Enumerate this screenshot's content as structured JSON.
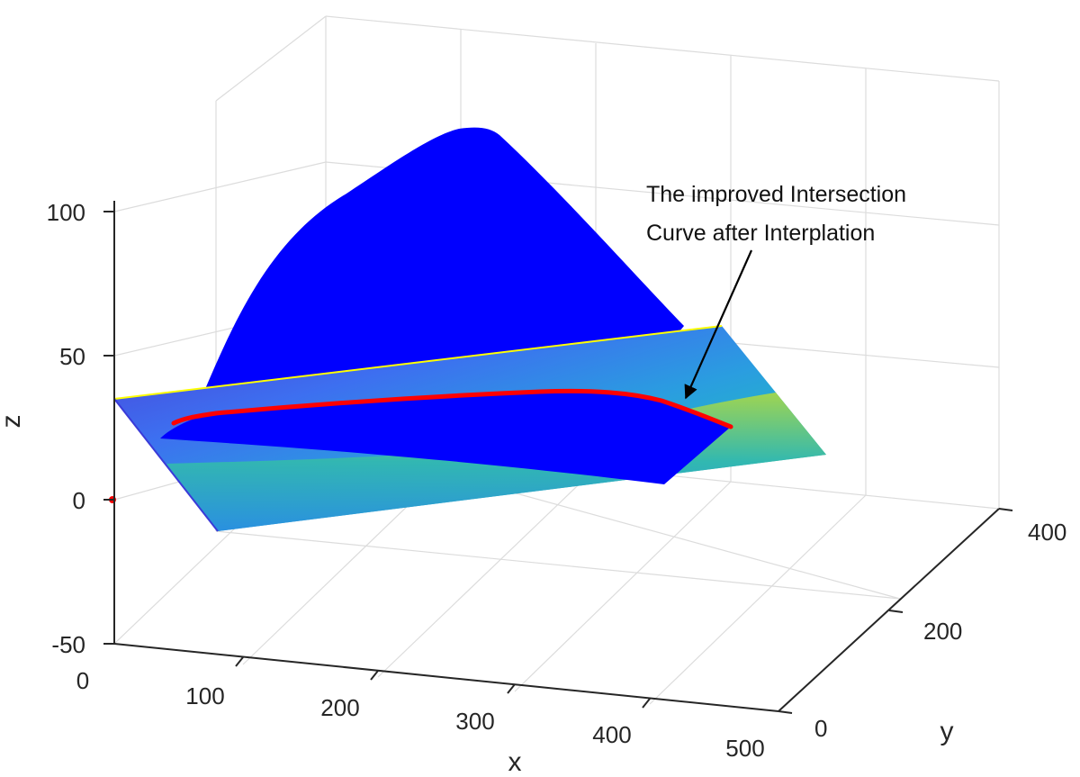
{
  "chart_data": {
    "type": "surface3d",
    "xlabel": "x",
    "ylabel": "y",
    "zlabel": "z",
    "xlim": [
      0,
      500
    ],
    "ylim": [
      0,
      400
    ],
    "zlim": [
      -50,
      100
    ],
    "x_ticks": [
      "0",
      "100",
      "200",
      "300",
      "400",
      "500"
    ],
    "y_ticks": [
      "0",
      "200",
      "400"
    ],
    "z_ticks": [
      "-50",
      "0",
      "50",
      "100"
    ],
    "grid": true,
    "annotation_lines": [
      "The improved Intersection",
      "Curve after Interplation"
    ],
    "colors": {
      "surface": "#0000ff",
      "intersection_curve": "#ff0000",
      "plane_edge": "#ffff00",
      "axes": "#262626",
      "grid": "#dcdcdc",
      "plane_gradient": [
        "#4b3fd6",
        "#3d6ff0",
        "#2a9de0",
        "#22b8c4",
        "#6fd06a",
        "#c8dc3a"
      ]
    }
  }
}
